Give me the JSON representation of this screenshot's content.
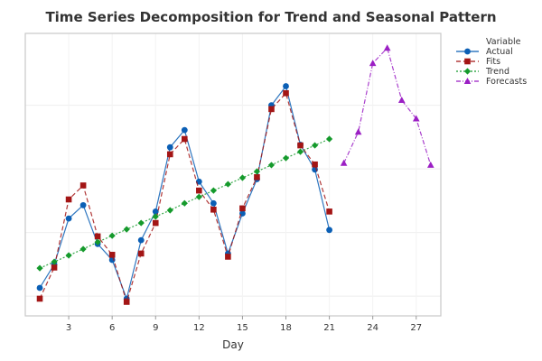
{
  "chart_data": {
    "type": "line",
    "title": "Time Series Decomposition for Trend and Seasonal Pattern",
    "xlabel": "Day",
    "ylabel": "",
    "xlim": [
      0,
      28.7
    ],
    "ylim": [
      -0.31,
      4.13
    ],
    "xticks": [
      3,
      6,
      9,
      12,
      15,
      18,
      21,
      24,
      27
    ],
    "ygrid": [
      0,
      1,
      2,
      3
    ],
    "grid": true,
    "legend": {
      "title": "Variable",
      "position": "right"
    },
    "series": [
      {
        "name": "Actual",
        "color": "#0b5fb5",
        "marker": "circle",
        "dash": "solid",
        "x": [
          1,
          2,
          3,
          4,
          5,
          6,
          7,
          8,
          9,
          10,
          11,
          12,
          13,
          14,
          15,
          16,
          17,
          18,
          19,
          20,
          21
        ],
        "values": [
          0.13,
          0.5,
          1.22,
          1.43,
          0.82,
          0.57,
          -0.04,
          0.88,
          1.33,
          2.34,
          2.61,
          1.8,
          1.46,
          0.67,
          1.3,
          1.84,
          3.0,
          3.3,
          2.38,
          1.99,
          1.04
        ]
      },
      {
        "name": "Fits",
        "color": "#a31515",
        "marker": "square",
        "dash": "dashed",
        "x": [
          1,
          2,
          3,
          4,
          5,
          6,
          7,
          8,
          9,
          10,
          11,
          12,
          13,
          14,
          15,
          16,
          17,
          18,
          19,
          20,
          21
        ],
        "values": [
          -0.04,
          0.45,
          1.52,
          1.74,
          0.94,
          0.65,
          -0.09,
          0.67,
          1.15,
          2.23,
          2.47,
          1.66,
          1.36,
          0.62,
          1.38,
          1.87,
          2.94,
          3.19,
          2.37,
          2.07,
          1.33
        ]
      },
      {
        "name": "Trend",
        "color": "#159a2c",
        "marker": "diamond",
        "dash": "dotted",
        "x": [
          1,
          2,
          3,
          4,
          5,
          6,
          7,
          8,
          9,
          10,
          11,
          12,
          13,
          14,
          15,
          16,
          17,
          18,
          19,
          20,
          21
        ],
        "values": [
          0.44,
          0.54,
          0.64,
          0.74,
          0.85,
          0.95,
          1.05,
          1.15,
          1.25,
          1.35,
          1.46,
          1.56,
          1.66,
          1.76,
          1.86,
          1.96,
          2.06,
          2.17,
          2.27,
          2.37,
          2.47
        ]
      },
      {
        "name": "Forecasts",
        "color": "#9b1fc4",
        "marker": "triangle",
        "dash": "dashdot",
        "x": [
          22,
          23,
          24,
          25,
          26,
          27,
          28
        ],
        "values": [
          2.09,
          2.58,
          3.66,
          3.9,
          3.08,
          2.79,
          2.06
        ]
      }
    ]
  }
}
